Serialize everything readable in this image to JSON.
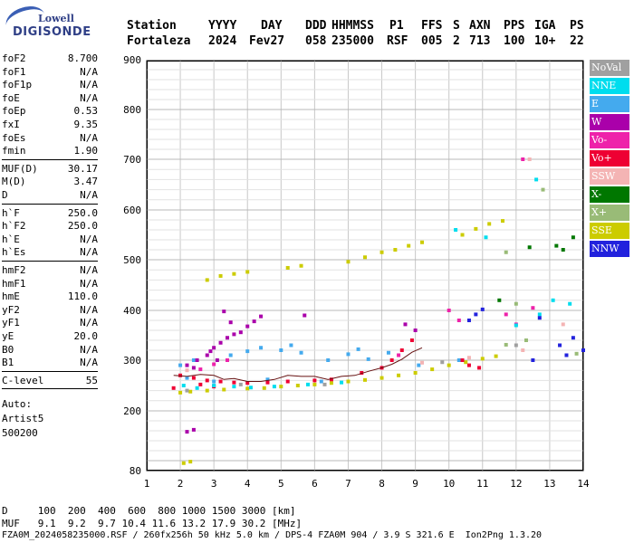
{
  "logo": {
    "line1": "Lowell",
    "line2": "DIGISONDE"
  },
  "header": {
    "labels": [
      "Station",
      "YYYY",
      "DAY",
      "DDD",
      "HHMMSS",
      "P1",
      "FFS",
      "S",
      "AXN",
      "PPS",
      "IGA",
      "PS"
    ],
    "values": [
      "Fortaleza",
      "2024",
      "Fev27",
      "058",
      "235000",
      "RSF",
      "005",
      "2",
      "713",
      "100",
      "10+",
      "22"
    ]
  },
  "params_group1": [
    {
      "k": "foF2",
      "v": "8.700"
    },
    {
      "k": "foF1",
      "v": "N/A"
    },
    {
      "k": "foF1p",
      "v": "N/A"
    },
    {
      "k": "foE",
      "v": "N/A"
    },
    {
      "k": "foEp",
      "v": "0.53"
    },
    {
      "k": "fxI",
      "v": "9.35"
    },
    {
      "k": "foEs",
      "v": "N/A"
    },
    {
      "k": "fmin",
      "v": "1.90"
    }
  ],
  "params_group2": [
    {
      "k": "MUF(D)",
      "v": "30.17"
    },
    {
      "k": "M(D)",
      "v": "3.47"
    },
    {
      "k": "D",
      "v": "N/A"
    }
  ],
  "params_group3": [
    {
      "k": "h`F",
      "v": "250.0"
    },
    {
      "k": "h`F2",
      "v": "250.0"
    },
    {
      "k": "h`E",
      "v": "N/A"
    },
    {
      "k": "h`Es",
      "v": "N/A"
    }
  ],
  "params_group4": [
    {
      "k": "hmF2",
      "v": "N/A"
    },
    {
      "k": "hmF1",
      "v": "N/A"
    },
    {
      "k": "hmE",
      "v": "110.0"
    },
    {
      "k": "yF2",
      "v": "N/A"
    },
    {
      "k": "yF1",
      "v": "N/A"
    },
    {
      "k": "yE",
      "v": "20.0"
    },
    {
      "k": "B0",
      "v": "N/A"
    },
    {
      "k": "B1",
      "v": "N/A"
    }
  ],
  "clevel": {
    "k": "C-level",
    "v": "55"
  },
  "auto": {
    "label": "Auto:",
    "artist": "Artist5",
    "num": "500200"
  },
  "legend": [
    {
      "label": "NoVal",
      "color": "#a0a0a0"
    },
    {
      "label": "NNE",
      "color": "#00ddee"
    },
    {
      "label": "E",
      "color": "#44aaee"
    },
    {
      "label": "W",
      "color": "#aa00aa"
    },
    {
      "label": "Vo-",
      "color": "#ee22aa"
    },
    {
      "label": "Vo+",
      "color": "#ee0033"
    },
    {
      "label": "SSW",
      "color": "#f4b4b4"
    },
    {
      "label": "X-",
      "color": "#007700"
    },
    {
      "label": "X+",
      "color": "#99bb77"
    },
    {
      "label": "SSE",
      "color": "#cccc00"
    },
    {
      "label": "NNW",
      "color": "#2222dd"
    }
  ],
  "bottom": {
    "d_label": "D",
    "d_values": "100  200  400  600  800 1000 1500 3000 [km]",
    "muf_label": "MUF",
    "muf_values": " 9.1  9.2  9.7 10.4 11.6 13.2 17.9 30.2 [MHz]",
    "footer": "FZA0M_2024058235000.RSF / 260fx256h 50 kHz 5.0 km / DPS-4 FZA0M 904 / 3.9 S 321.6 E  Ion2Png 1.3.20"
  },
  "chart_data": {
    "type": "scatter",
    "xlim": [
      1,
      14
    ],
    "ylim": [
      80,
      900
    ],
    "x_ticks": [
      1,
      2,
      3,
      4,
      5,
      6,
      7,
      8,
      9,
      10,
      11,
      12,
      13,
      14
    ],
    "y_ticks": [
      80,
      200,
      300,
      400,
      500,
      600,
      700,
      800,
      900
    ],
    "grid": true,
    "legend_placement": "right",
    "series": [
      {
        "name": "SSE",
        "color": "#cccc00",
        "points": [
          [
            2.0,
            236
          ],
          [
            2.3,
            238
          ],
          [
            2.8,
            240
          ],
          [
            3.3,
            242
          ],
          [
            4.0,
            244
          ],
          [
            4.5,
            245
          ],
          [
            5.0,
            248
          ],
          [
            5.5,
            250
          ],
          [
            6.0,
            252
          ],
          [
            6.5,
            255
          ],
          [
            7.0,
            258
          ],
          [
            7.5,
            261
          ],
          [
            8.0,
            265
          ],
          [
            8.5,
            270
          ],
          [
            9.0,
            275
          ],
          [
            9.5,
            282
          ],
          [
            10.0,
            290
          ],
          [
            10.5,
            296
          ],
          [
            11.0,
            303
          ],
          [
            11.4,
            308
          ],
          [
            2.8,
            460
          ],
          [
            3.2,
            468
          ],
          [
            3.6,
            472
          ],
          [
            4.0,
            476
          ],
          [
            5.2,
            484
          ],
          [
            5.6,
            488
          ],
          [
            7.0,
            496
          ],
          [
            7.5,
            505
          ],
          [
            8.0,
            515
          ],
          [
            8.4,
            520
          ],
          [
            8.8,
            528
          ],
          [
            9.2,
            535
          ],
          [
            10.4,
            550
          ],
          [
            10.8,
            562
          ],
          [
            11.2,
            572
          ],
          [
            11.6,
            578
          ],
          [
            2.1,
            95
          ],
          [
            2.3,
            98
          ]
        ]
      },
      {
        "name": "E",
        "color": "#44aaee",
        "points": [
          [
            2.0,
            290
          ],
          [
            2.4,
            300
          ],
          [
            3.5,
            310
          ],
          [
            4.0,
            318
          ],
          [
            4.4,
            325
          ],
          [
            5.0,
            320
          ],
          [
            5.3,
            330
          ],
          [
            5.6,
            315
          ],
          [
            6.4,
            300
          ],
          [
            7.0,
            312
          ],
          [
            7.3,
            322
          ],
          [
            7.6,
            302
          ],
          [
            8.2,
            315
          ],
          [
            9.1,
            290
          ],
          [
            10.3,
            300
          ],
          [
            2.2,
            265
          ],
          [
            3.0,
            258
          ],
          [
            4.6,
            262
          ],
          [
            6.2,
            258
          ]
        ]
      },
      {
        "name": "W",
        "color": "#aa00aa",
        "points": [
          [
            2.2,
            290
          ],
          [
            2.5,
            300
          ],
          [
            2.8,
            310
          ],
          [
            3.0,
            325
          ],
          [
            3.2,
            335
          ],
          [
            3.4,
            345
          ],
          [
            3.6,
            352
          ],
          [
            3.8,
            356
          ],
          [
            4.0,
            368
          ],
          [
            4.2,
            378
          ],
          [
            4.4,
            388
          ],
          [
            3.3,
            398
          ],
          [
            3.5,
            376
          ],
          [
            2.9,
            318
          ],
          [
            3.1,
            300
          ],
          [
            2.4,
            285
          ],
          [
            5.7,
            390
          ],
          [
            2.2,
            158
          ],
          [
            2.4,
            162
          ],
          [
            8.7,
            372
          ],
          [
            9.0,
            360
          ]
        ]
      },
      {
        "name": "Vo+",
        "color": "#ee0033",
        "points": [
          [
            2.0,
            270
          ],
          [
            2.4,
            265
          ],
          [
            2.8,
            260
          ],
          [
            3.2,
            258
          ],
          [
            3.6,
            256
          ],
          [
            4.0,
            255
          ],
          [
            4.6,
            256
          ],
          [
            5.2,
            258
          ],
          [
            6.0,
            260
          ],
          [
            6.5,
            262
          ],
          [
            7.4,
            275
          ],
          [
            8.0,
            285
          ],
          [
            8.3,
            300
          ],
          [
            8.6,
            320
          ],
          [
            8.9,
            340
          ],
          [
            10.4,
            300
          ],
          [
            10.6,
            290
          ],
          [
            10.9,
            285
          ],
          [
            1.8,
            245
          ],
          [
            2.6,
            252
          ],
          [
            3.0,
            248
          ]
        ]
      },
      {
        "name": "Vo-",
        "color": "#ee22aa",
        "points": [
          [
            2.6,
            282
          ],
          [
            3.0,
            292
          ],
          [
            3.4,
            300
          ],
          [
            8.5,
            310
          ],
          [
            10.0,
            400
          ],
          [
            10.3,
            380
          ],
          [
            11.7,
            392
          ],
          [
            12.0,
            372
          ],
          [
            12.2,
            700
          ],
          [
            12.5,
            405
          ]
        ]
      },
      {
        "name": "NNE",
        "color": "#00ddee",
        "points": [
          [
            2.1,
            250
          ],
          [
            2.5,
            245
          ],
          [
            3.0,
            250
          ],
          [
            3.6,
            248
          ],
          [
            4.1,
            246
          ],
          [
            4.8,
            248
          ],
          [
            5.8,
            252
          ],
          [
            6.8,
            256
          ],
          [
            12.0,
            370
          ],
          [
            12.7,
            392
          ],
          [
            13.1,
            420
          ],
          [
            13.6,
            413
          ],
          [
            10.2,
            560
          ],
          [
            12.6,
            660
          ],
          [
            11.1,
            545
          ]
        ]
      },
      {
        "name": "NNW",
        "color": "#2222dd",
        "points": [
          [
            10.6,
            380
          ],
          [
            10.8,
            392
          ],
          [
            11.0,
            402
          ],
          [
            13.3,
            330
          ],
          [
            13.5,
            310
          ],
          [
            13.7,
            345
          ],
          [
            14.0,
            320
          ],
          [
            12.7,
            385
          ],
          [
            12.5,
            300
          ]
        ]
      },
      {
        "name": "X-",
        "color": "#007700",
        "points": [
          [
            12.4,
            525
          ],
          [
            13.2,
            528
          ],
          [
            13.4,
            520
          ],
          [
            11.5,
            420
          ],
          [
            13.7,
            545
          ]
        ]
      },
      {
        "name": "X+",
        "color": "#99bb77",
        "points": [
          [
            13.8,
            313
          ],
          [
            12.3,
            340
          ],
          [
            11.7,
            331
          ],
          [
            12.8,
            640
          ],
          [
            11.7,
            515
          ],
          [
            12.0,
            413
          ]
        ]
      },
      {
        "name": "SSW",
        "color": "#f4b4b4",
        "points": [
          [
            12.4,
            700
          ],
          [
            12.2,
            320
          ],
          [
            9.2,
            295
          ],
          [
            13.4,
            372
          ],
          [
            2.2,
            280
          ],
          [
            10.6,
            305
          ]
        ]
      },
      {
        "name": "NoVal",
        "color": "#a0a0a0",
        "points": [
          [
            2.2,
            240
          ],
          [
            3.8,
            252
          ],
          [
            6.3,
            252
          ],
          [
            9.8,
            296
          ],
          [
            12.0,
            330
          ]
        ]
      }
    ],
    "trace": [
      [
        1.8,
        270
      ],
      [
        2.2,
        268
      ],
      [
        2.6,
        272
      ],
      [
        3.0,
        270
      ],
      [
        3.3,
        262
      ],
      [
        3.6,
        264
      ],
      [
        4.0,
        258
      ],
      [
        4.4,
        258
      ],
      [
        4.8,
        262
      ],
      [
        5.2,
        270
      ],
      [
        5.6,
        268
      ],
      [
        6.0,
        268
      ],
      [
        6.4,
        262
      ],
      [
        6.8,
        268
      ],
      [
        7.2,
        270
      ],
      [
        7.6,
        278
      ],
      [
        8.0,
        285
      ],
      [
        8.3,
        292
      ],
      [
        8.6,
        302
      ],
      [
        8.9,
        316
      ],
      [
        9.2,
        325
      ]
    ]
  }
}
